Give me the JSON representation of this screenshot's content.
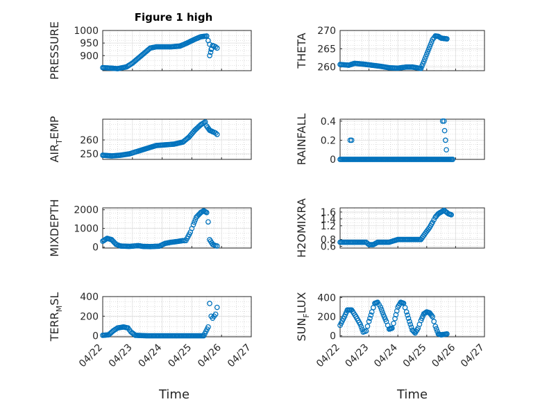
{
  "title": "Figure 1 high",
  "colors": {
    "marker": "#0072bd",
    "axis": "#262626",
    "grid": "#dedede"
  },
  "chart_data": [
    {
      "type": "scatter",
      "ylabel": "PRESSURE",
      "ylim": [
        840,
        1000
      ],
      "yticks": [
        {
          "v": 900,
          "t": "900"
        },
        {
          "v": 950,
          "t": "950"
        },
        {
          "v": 1000,
          "t": "1000"
        }
      ],
      "xlim": [
        0,
        5
      ],
      "xticks": [
        "04/22",
        "04/23",
        "04/24",
        "04/25",
        "04/26",
        "04/27"
      ],
      "grid": true,
      "series": [
        {
          "points": [
            [
              0,
              852
            ],
            [
              0.3,
              850
            ],
            [
              0.5,
              848
            ],
            [
              0.8,
              855
            ],
            [
              1.0,
              870
            ],
            [
              1.2,
              890
            ],
            [
              1.4,
              910
            ],
            [
              1.6,
              930
            ],
            [
              1.8,
              935
            ],
            [
              2.3,
              935
            ],
            [
              2.6,
              938
            ],
            [
              2.8,
              948
            ],
            [
              3.1,
              965
            ],
            [
              3.3,
              975
            ],
            [
              3.5,
              978
            ],
            [
              3.55,
              960
            ],
            [
              3.6,
              945
            ],
            [
              3.65,
              925
            ],
            [
              3.6,
              900
            ],
            [
              3.7,
              940
            ],
            [
              3.8,
              935
            ],
            [
              3.85,
              930
            ]
          ]
        }
      ]
    },
    {
      "type": "scatter",
      "ylabel": "THETA",
      "ylim": [
        259,
        270
      ],
      "yticks": [
        {
          "v": 260,
          "t": "260"
        },
        {
          "v": 265,
          "t": "265"
        },
        {
          "v": 270,
          "t": "270"
        }
      ],
      "xlim": [
        0,
        5
      ],
      "xticks": [
        "04/22",
        "04/23",
        "04/24",
        "04/25",
        "04/26",
        "04/27"
      ],
      "grid": true,
      "series": [
        {
          "points": [
            [
              0,
              260.7
            ],
            [
              0.3,
              260.5
            ],
            [
              0.5,
              261.0
            ],
            [
              0.8,
              260.8
            ],
            [
              1.1,
              260.5
            ],
            [
              1.4,
              260.2
            ],
            [
              1.7,
              259.8
            ],
            [
              2.0,
              259.7
            ],
            [
              2.3,
              260.0
            ],
            [
              2.5,
              260.0
            ],
            [
              2.65,
              259.8
            ],
            [
              2.8,
              259.6
            ],
            [
              2.9,
              261.5
            ],
            [
              3.0,
              263.5
            ],
            [
              3.1,
              265.5
            ],
            [
              3.2,
              267.5
            ],
            [
              3.3,
              268.5
            ],
            [
              3.4,
              268.4
            ],
            [
              3.5,
              267.9
            ],
            [
              3.6,
              267.8
            ],
            [
              3.7,
              267.7
            ]
          ]
        }
      ]
    },
    {
      "type": "scatter",
      "ylabel": "AIR",
      "ylabel_sub": "T",
      "ylabel_tail": "EMP",
      "ylim": [
        246,
        275
      ],
      "yticks": [
        {
          "v": 250,
          "t": "250"
        },
        {
          "v": 260,
          "t": "260"
        }
      ],
      "xlim": [
        0,
        5
      ],
      "xticks": [
        "04/22",
        "04/23",
        "04/24",
        "04/25",
        "04/26",
        "04/27"
      ],
      "grid": true,
      "series": [
        {
          "points": [
            [
              0,
              249
            ],
            [
              0.3,
              248.5
            ],
            [
              0.6,
              249
            ],
            [
              0.9,
              250
            ],
            [
              1.2,
              252
            ],
            [
              1.5,
              254
            ],
            [
              1.8,
              256
            ],
            [
              2.1,
              256.5
            ],
            [
              2.4,
              257
            ],
            [
              2.7,
              258.5
            ],
            [
              2.9,
              262
            ],
            [
              3.1,
              267
            ],
            [
              3.3,
              271
            ],
            [
              3.45,
              273
            ],
            [
              3.5,
              270
            ],
            [
              3.6,
              267
            ],
            [
              3.7,
              266
            ],
            [
              3.8,
              265
            ],
            [
              3.85,
              264
            ]
          ]
        }
      ]
    },
    {
      "type": "scatter",
      "ylabel": "RAINFALL",
      "ylim": [
        0,
        0.42
      ],
      "yticks": [
        {
          "v": 0,
          "t": "0"
        },
        {
          "v": 0.2,
          "t": "0.2"
        },
        {
          "v": 0.4,
          "t": "0.4"
        }
      ],
      "xlim": [
        0,
        5
      ],
      "xticks": [
        "04/22",
        "04/23",
        "04/24",
        "04/25",
        "04/26",
        "04/27"
      ],
      "grid": true,
      "series": [
        {
          "points": [
            [
              0,
              0
            ],
            [
              0.5,
              0
            ],
            [
              1.0,
              0
            ],
            [
              1.5,
              0
            ],
            [
              2.0,
              0
            ],
            [
              2.5,
              0
            ],
            [
              3.0,
              0
            ],
            [
              3.5,
              0
            ],
            [
              3.9,
              0
            ],
            [
              0.35,
              0.2
            ],
            [
              0.4,
              0.2
            ],
            [
              3.55,
              0.4
            ],
            [
              3.6,
              0.4
            ],
            [
              3.62,
              0.3
            ],
            [
              3.68,
              0.1
            ]
          ]
        }
      ]
    },
    {
      "type": "scatter",
      "ylabel": "MIXDEPTH",
      "ylim": [
        -50,
        2100
      ],
      "yticks": [
        {
          "v": 0,
          "t": "0"
        },
        {
          "v": 1000,
          "t": "1000"
        },
        {
          "v": 2000,
          "t": "2000"
        }
      ],
      "xlim": [
        0,
        5
      ],
      "xticks": [
        "04/22",
        "04/23",
        "04/24",
        "04/25",
        "04/26",
        "04/27"
      ],
      "grid": true,
      "series": [
        {
          "points": [
            [
              0,
              320
            ],
            [
              0.15,
              470
            ],
            [
              0.3,
              400
            ],
            [
              0.45,
              150
            ],
            [
              0.6,
              60
            ],
            [
              0.9,
              40
            ],
            [
              1.2,
              80
            ],
            [
              1.35,
              40
            ],
            [
              1.6,
              30
            ],
            [
              1.9,
              50
            ],
            [
              2.1,
              200
            ],
            [
              2.3,
              260
            ],
            [
              2.5,
              300
            ],
            [
              2.7,
              350
            ],
            [
              2.8,
              350
            ],
            [
              2.95,
              800
            ],
            [
              3.05,
              1200
            ],
            [
              3.15,
              1600
            ],
            [
              3.3,
              1850
            ],
            [
              3.4,
              1950
            ],
            [
              3.5,
              1850
            ],
            [
              3.55,
              1350
            ],
            [
              3.6,
              400
            ],
            [
              3.7,
              150
            ],
            [
              3.8,
              80
            ],
            [
              3.85,
              60
            ]
          ]
        }
      ]
    },
    {
      "type": "scatter",
      "ylabel": "H2OMIXRA",
      "ylim": [
        0.55,
        1.72
      ],
      "yticks": [
        {
          "v": 0.6,
          "t": "0.6"
        },
        {
          "v": 0.8,
          "t": "0.8"
        },
        {
          "v": 1.2,
          "t": "1.2"
        },
        {
          "v": 1.4,
          "t": "1.4"
        },
        {
          "v": 1.6,
          "t": "1.6"
        }
      ],
      "xlim": [
        0,
        5
      ],
      "xticks": [
        "04/22",
        "04/23",
        "04/24",
        "04/25",
        "04/26",
        "04/27"
      ],
      "grid": true,
      "series": [
        {
          "points": [
            [
              0,
              0.72
            ],
            [
              0.5,
              0.72
            ],
            [
              0.9,
              0.72
            ],
            [
              1.0,
              0.65
            ],
            [
              1.15,
              0.65
            ],
            [
              1.3,
              0.72
            ],
            [
              1.7,
              0.72
            ],
            [
              2.0,
              0.8
            ],
            [
              2.5,
              0.8
            ],
            [
              2.8,
              0.8
            ],
            [
              2.95,
              0.98
            ],
            [
              3.1,
              1.15
            ],
            [
              3.2,
              1.3
            ],
            [
              3.3,
              1.45
            ],
            [
              3.4,
              1.55
            ],
            [
              3.5,
              1.6
            ],
            [
              3.6,
              1.65
            ],
            [
              3.75,
              1.55
            ],
            [
              3.85,
              1.52
            ]
          ]
        }
      ]
    },
    {
      "type": "scatter",
      "ylabel": "TERR",
      "ylabel_sub": "M",
      "ylabel_tail": "SL",
      "ylim": [
        -10,
        400
      ],
      "yticks": [
        {
          "v": 0,
          "t": "0"
        },
        {
          "v": 200,
          "t": "200"
        },
        {
          "v": 400,
          "t": "400"
        }
      ],
      "xlim": [
        0,
        5
      ],
      "xticks": [
        "04/22",
        "04/23",
        "04/24",
        "04/25",
        "04/26",
        "04/27"
      ],
      "grid": true,
      "series": [
        {
          "points": [
            [
              0,
              5
            ],
            [
              0.2,
              10
            ],
            [
              0.35,
              50
            ],
            [
              0.5,
              80
            ],
            [
              0.7,
              90
            ],
            [
              0.85,
              80
            ],
            [
              0.95,
              40
            ],
            [
              1.1,
              5
            ],
            [
              1.5,
              0
            ],
            [
              2.0,
              0
            ],
            [
              2.5,
              0
            ],
            [
              3.0,
              0
            ],
            [
              3.4,
              0
            ],
            [
              3.55,
              90
            ],
            [
              3.6,
              330
            ],
            [
              3.65,
              200
            ],
            [
              3.7,
              180
            ],
            [
              3.8,
              220
            ],
            [
              3.85,
              290
            ]
          ]
        }
      ]
    },
    {
      "type": "scatter",
      "ylabel": "SUN",
      "ylabel_sub": "F",
      "ylabel_tail": "LUX",
      "ylim": [
        -10,
        410
      ],
      "yticks": [
        {
          "v": 0,
          "t": "0"
        },
        {
          "v": 200,
          "t": "200"
        },
        {
          "v": 400,
          "t": "400"
        }
      ],
      "xlim": [
        0,
        5
      ],
      "xticks": [
        "04/22",
        "04/23",
        "04/24",
        "04/25",
        "04/26",
        "04/27"
      ],
      "grid": true,
      "series": [
        {
          "points": [
            [
              0,
              110
            ],
            [
              0.15,
              200
            ],
            [
              0.25,
              270
            ],
            [
              0.4,
              270
            ],
            [
              0.55,
              200
            ],
            [
              0.7,
              120
            ],
            [
              0.8,
              40
            ],
            [
              0.9,
              50
            ],
            [
              1.0,
              150
            ],
            [
              1.1,
              250
            ],
            [
              1.2,
              340
            ],
            [
              1.3,
              350
            ],
            [
              1.4,
              300
            ],
            [
              1.5,
              220
            ],
            [
              1.6,
              150
            ],
            [
              1.7,
              70
            ],
            [
              1.8,
              80
            ],
            [
              1.9,
              180
            ],
            [
              2.0,
              300
            ],
            [
              2.1,
              350
            ],
            [
              2.2,
              340
            ],
            [
              2.3,
              250
            ],
            [
              2.4,
              150
            ],
            [
              2.5,
              60
            ],
            [
              2.6,
              30
            ],
            [
              2.7,
              80
            ],
            [
              2.8,
              160
            ],
            [
              2.9,
              230
            ],
            [
              3.0,
              250
            ],
            [
              3.1,
              240
            ],
            [
              3.2,
              200
            ],
            [
              3.3,
              100
            ],
            [
              3.4,
              20
            ],
            [
              3.5,
              10
            ],
            [
              3.6,
              15
            ],
            [
              3.7,
              20
            ]
          ]
        }
      ]
    }
  ],
  "xlabels": [
    "Time",
    "Time"
  ]
}
